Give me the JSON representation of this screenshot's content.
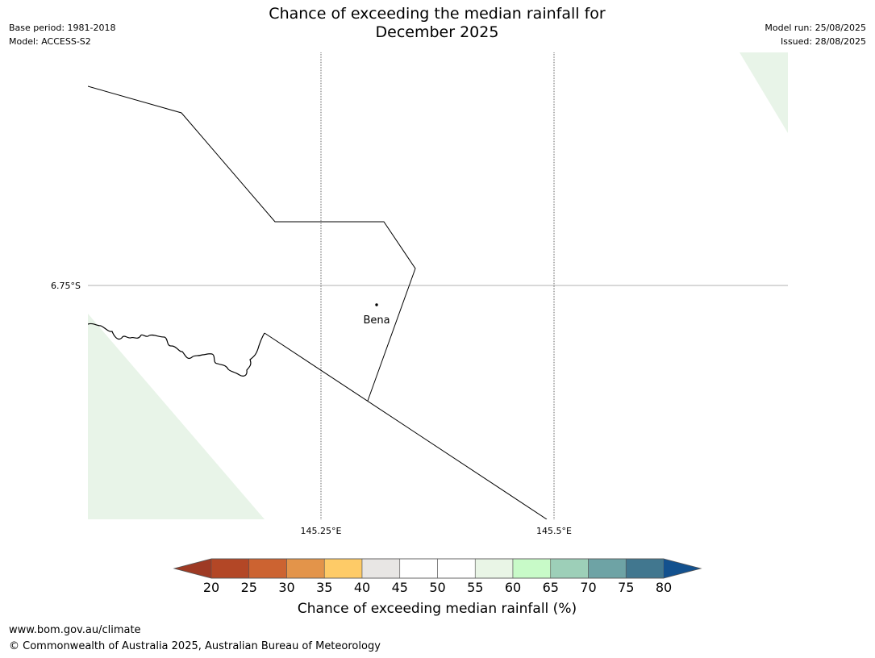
{
  "header": {
    "title_line1": "Chance of exceeding the median rainfall for",
    "title_line2": "December 2025",
    "base_period": "Base period: 1981-2018",
    "model": "Model: ACCESS-S2",
    "model_run": "Model run: 25/08/2025",
    "issued": "Issued: 28/08/2025"
  },
  "map": {
    "lat_label": "6.75°S",
    "lon_labels": [
      "145.25°E",
      "145.5°E"
    ],
    "place": "Bena",
    "colors": {
      "forecast_fill": "#e8f4e8",
      "boundary": "#000000",
      "gridline": "#000000"
    }
  },
  "colorbar": {
    "ticks": [
      "20",
      "25",
      "30",
      "35",
      "40",
      "45",
      "50",
      "55",
      "60",
      "65",
      "70",
      "75",
      "80"
    ],
    "colors": [
      "#b34726",
      "#cc6331",
      "#e3944a",
      "#fecb67",
      "#e8e6e4",
      "#ffffff",
      "#ffffff",
      "#e9f5e6",
      "#c8fac8",
      "#9dcfb8",
      "#6ea3a5",
      "#41778f"
    ],
    "under_color": "#9e3a24",
    "over_color": "#13518e",
    "label": "Chance of exceeding median rainfall (%)"
  },
  "footer": {
    "url": "www.bom.gov.au/climate",
    "copyright": "© Commonwealth of Australia 2025, Australian Bureau of Meteorology"
  }
}
